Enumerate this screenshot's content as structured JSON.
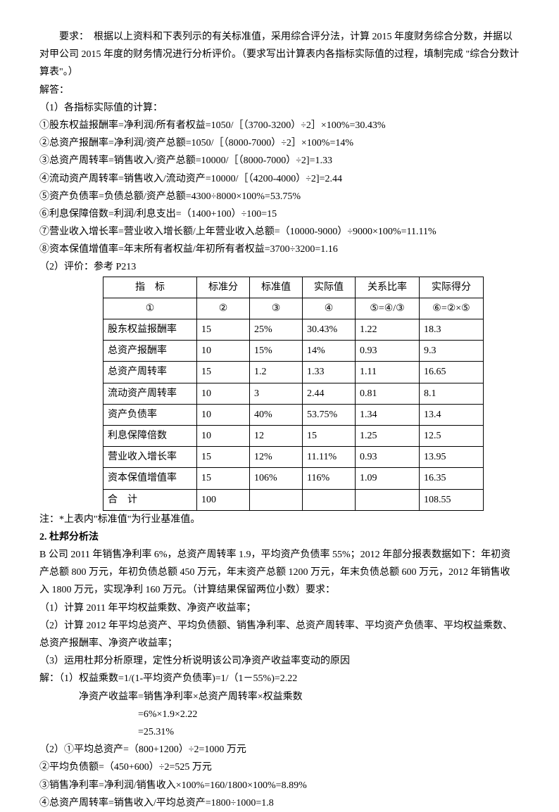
{
  "req": "　　要求：　根据以上资料和下表列示的有关标准值，采用综合评分法，计算 2015 年度财务综合分数，并据以对甲公司 2015 年度的财务情况进行分析评价。（要求写出计算表内各指标实际值的过程，填制完成 \"综合分数计算表\"。）",
  "ans": "解答：",
  "t1": "（1）各指标实际值的计算：",
  "l1": "①股东权益报酬率=净利润/所有者权益=1050/［（3700-3200）÷2］×100%=30.43%",
  "l2": "②总资产报酬率=净利润/资产总额=1050/［（8000-7000）÷2］×100%=14%",
  "l3": "③总资产周转率=销售收入/资产总额=10000/［（8000-7000）÷2]=1.33",
  "l4": "④流动资产周转率=销售收入/流动资产=10000/［（4200-4000）÷2]=2.44",
  "l5": "⑤资产负债率=负债总额/资产总额=4300÷8000×100%=53.75%",
  "l6": "⑥利息保障倍数=利润/利息支出=（1400+100）÷100=15",
  "l7": "⑦营业收入增长率=营业收入增长额/上年营业收入总额=（10000-9000）÷9000×100%=11.11%",
  "l8": "⑧资本保值增值率=年末所有者权益/年初所有者权益=3700÷3200=1.16",
  "t2": "（2）评价：参考 P213",
  "table": {
    "h": [
      "指　标",
      "标准分",
      "标准值",
      "实际值",
      "关系比率",
      "实际得分"
    ],
    "n": [
      "①",
      "②",
      "③",
      "④",
      "⑤=④/③",
      "⑥=②×⑤"
    ],
    "rows": [
      [
        "股东权益报酬率",
        "15",
        "25%",
        "30.43%",
        "1.22",
        "18.3"
      ],
      [
        "总资产报酬率",
        "10",
        "15%",
        "14%",
        "0.93",
        "9.3"
      ],
      [
        "总资产周转率",
        "15",
        "1.2",
        "1.33",
        "1.11",
        "16.65"
      ],
      [
        "流动资产周转率",
        "10",
        "3",
        "2.44",
        "0.81",
        "8.1"
      ],
      [
        "资产负债率",
        "10",
        "40%",
        "53.75%",
        "1.34",
        "13.4"
      ],
      [
        "利息保障倍数",
        "10",
        "12",
        "15",
        "1.25",
        "12.5"
      ],
      [
        "营业收入增长率",
        "15",
        "12%",
        "11.11%",
        "0.93",
        "13.95"
      ],
      [
        "资本保值增值率",
        "15",
        "106%",
        "116%",
        "1.09",
        "16.35"
      ],
      [
        "合　计",
        "100",
        "",
        "",
        "",
        "108.55"
      ]
    ]
  },
  "note": "注：*上表内\"标准值\"为行业基准值。",
  "s2": "2. 杜邦分析法",
  "p2a": "B 公司 2011 年销售净利率 6%，总资产周转率 1.9，平均资产负债率 55%；2012 年部分报表数据如下：年初资产总额 800 万元，年初负债总额 450 万元，年末资产总额 1200 万元，年末负债总额 600 万元，2012 年销售收入 1800 万元，实现净利 160 万元。（计算结果保留两位小数）要求：",
  "q1": "（1）计算 2011 年平均权益乘数、净资产收益率；",
  "q2": "（2）计算 2012 年平均总资产、平均负债额、销售净利率、总资产周转率、平均资产负债率、平均权益乘数、总资产报酬率、净资产收益率；",
  "q3": "（3）运用杜邦分析原理，定性分析说明该公司净资产收益率变动的原因",
  "a1": "解：（1）权益乘数=1/(1-平均资产负债率)=1/（1－55%)=2.22",
  "a2": "　　　　净资产收益率=销售净利率×总资产周转率×权益乘数",
  "a3": "　　　　　　　　　　=6%×1.9×2.22",
  "a4": "　　　　　　　　　　=25.31%",
  "b0": "（2）①平均总资产=（800+1200）÷2=1000 万元",
  "b1": "②平均负债额=（450+600）÷2=525 万元",
  "b2": "③销售净利率=净利润/销售收入×100%=160/1800×100%=8.89%",
  "b3": "④总资产周转率=销售收入/平均总资产=1800÷1000=1.8"
}
